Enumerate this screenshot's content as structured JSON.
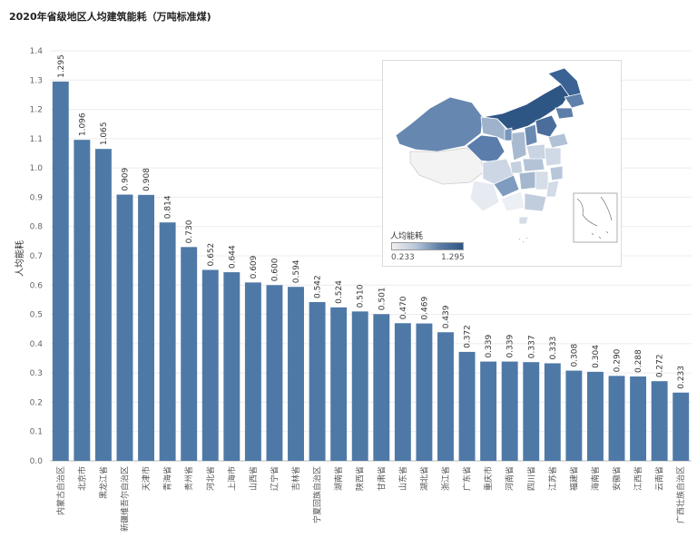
{
  "chart_data": {
    "type": "bar",
    "title": "2020年省级地区人均建筑能耗（万吨标准煤)",
    "ylabel": "人均能耗",
    "ylim": [
      0,
      1.4
    ],
    "yticks": [
      "0.0",
      "0.1",
      "0.2",
      "0.3",
      "0.4",
      "0.5",
      "0.6",
      "0.7",
      "0.8",
      "0.9",
      "1.0",
      "1.1",
      "1.2",
      "1.3",
      "1.4"
    ],
    "categories": [
      "内蒙古自治区",
      "北京市",
      "黑龙江省",
      "新疆维吾尔自治区",
      "天津市",
      "青海省",
      "贵州省",
      "河北省",
      "上海市",
      "山西省",
      "辽宁省",
      "吉林省",
      "宁夏回族自治区",
      "湖南省",
      "陕西省",
      "甘肃省",
      "山东省",
      "湖北省",
      "浙江省",
      "广东省",
      "重庆市",
      "河南省",
      "四川省",
      "江苏省",
      "福建省",
      "海南省",
      "安徽省",
      "江西省",
      "云南省",
      "广西壮族自治区"
    ],
    "values": [
      1.295,
      1.096,
      1.065,
      0.909,
      0.908,
      0.814,
      0.73,
      0.652,
      0.644,
      0.609,
      0.6,
      0.594,
      0.542,
      0.524,
      0.51,
      0.501,
      0.47,
      0.469,
      0.439,
      0.372,
      0.339,
      0.339,
      0.337,
      0.333,
      0.308,
      0.304,
      0.29,
      0.288,
      0.272,
      0.233
    ],
    "value_labels": [
      "1.295",
      "1.096",
      "1.065",
      "0.909",
      "0.908",
      "0.814",
      "0.730",
      "0.652",
      "0.644",
      "0.609",
      "0.600",
      "0.594",
      "0.542",
      "0.524",
      "0.510",
      "0.501",
      "0.470",
      "0.469",
      "0.439",
      "0.372",
      "0.339",
      "0.339",
      "0.337",
      "0.333",
      "0.308",
      "0.304",
      "0.290",
      "0.288",
      "0.272",
      "0.233"
    ],
    "bar_color": "#4e79a7",
    "grid": true
  },
  "map_legend": {
    "title": "人均能耗",
    "min_label": "0.233",
    "max_label": "1.295",
    "color_low": "#f0f0f0",
    "color_high": "#2e5685"
  }
}
